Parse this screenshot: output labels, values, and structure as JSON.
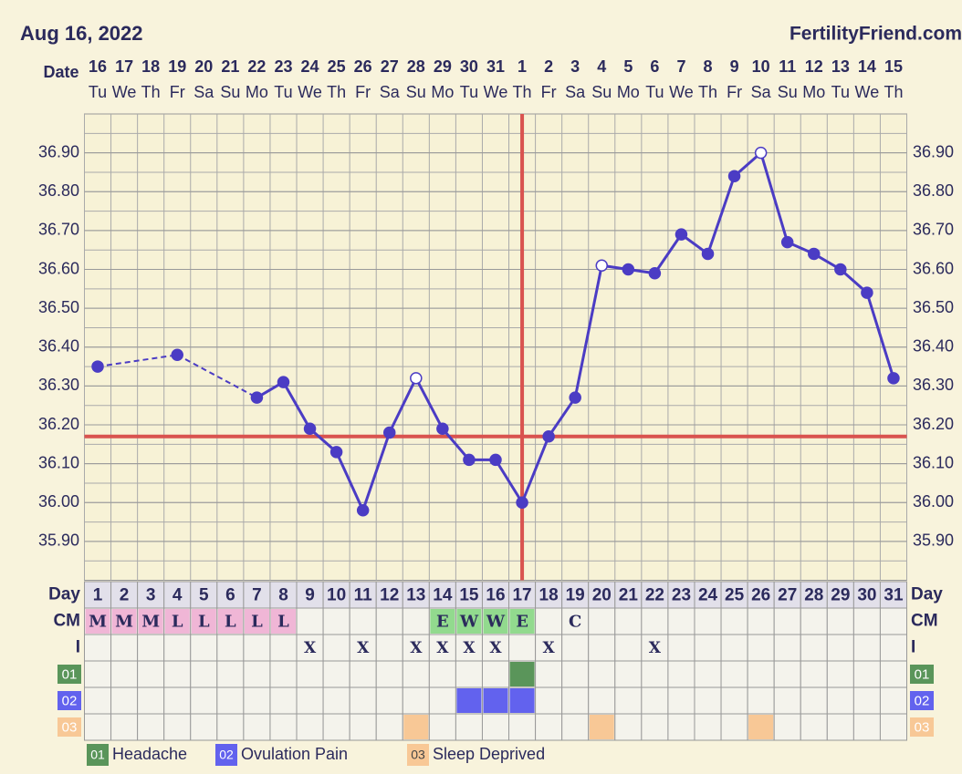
{
  "chart_data": {
    "type": "line",
    "date": "Aug 16, 2022",
    "site": "FertilityFriend.com",
    "date_label": "Date",
    "categories": [
      "16",
      "17",
      "18",
      "19",
      "20",
      "21",
      "22",
      "23",
      "24",
      "25",
      "26",
      "27",
      "28",
      "29",
      "30",
      "31",
      "1",
      "2",
      "3",
      "4",
      "5",
      "6",
      "7",
      "8",
      "9",
      "10",
      "11",
      "12",
      "13",
      "14",
      "15"
    ],
    "weekdays": [
      "Tu",
      "We",
      "Th",
      "Fr",
      "Sa",
      "Su",
      "Mo",
      "Tu",
      "We",
      "Th",
      "Fr",
      "Sa",
      "Su",
      "Mo",
      "Tu",
      "We",
      "Th",
      "Fr",
      "Sa",
      "Su",
      "Mo",
      "Tu",
      "We",
      "Th",
      "Fr",
      "Sa",
      "Su",
      "Mo",
      "Tu",
      "We",
      "Th"
    ],
    "days": [
      "1",
      "2",
      "3",
      "4",
      "5",
      "6",
      "7",
      "8",
      "9",
      "10",
      "11",
      "12",
      "13",
      "14",
      "15",
      "16",
      "17",
      "18",
      "19",
      "20",
      "21",
      "22",
      "23",
      "24",
      "25",
      "26",
      "27",
      "28",
      "29",
      "30",
      "31"
    ],
    "series": [
      {
        "color": "#4b3cc4",
        "values": [
          36.35,
          null,
          null,
          36.38,
          null,
          null,
          36.27,
          36.31,
          36.19,
          36.13,
          35.98,
          36.18,
          36.32,
          36.19,
          36.11,
          36.11,
          36.0,
          36.17,
          36.27,
          36.61,
          36.6,
          36.59,
          36.69,
          36.64,
          36.84,
          36.9,
          36.67,
          36.64,
          36.6,
          36.54,
          36.32
        ],
        "open": [
          false,
          false,
          false,
          false,
          false,
          false,
          false,
          false,
          false,
          false,
          false,
          false,
          true,
          false,
          false,
          false,
          false,
          false,
          false,
          true,
          false,
          false,
          false,
          false,
          false,
          true,
          false,
          false,
          false,
          false,
          false
        ]
      }
    ],
    "ylim": [
      35.8,
      37.0
    ],
    "yticks": [
      {
        "value": 35.9,
        "label": "35.90"
      },
      {
        "value": 36.0,
        "label": "36.00"
      },
      {
        "value": 36.1,
        "label": "36.10"
      },
      {
        "value": 36.2,
        "label": "36.20"
      },
      {
        "value": 36.3,
        "label": "36.30"
      },
      {
        "value": 36.4,
        "label": "36.40"
      },
      {
        "value": 36.5,
        "label": "36.50"
      },
      {
        "value": 36.6,
        "label": "36.60"
      },
      {
        "value": 36.7,
        "label": "36.70"
      },
      {
        "value": 36.8,
        "label": "36.80"
      },
      {
        "value": 36.9,
        "label": "36.90"
      }
    ],
    "coverline": 36.17,
    "ovulation_day": 17,
    "marker_color": "#d9534f",
    "row_labels": [
      "Day",
      "CM",
      "I"
    ],
    "cm": [
      "M",
      "M",
      "M",
      "L",
      "L",
      "L",
      "L",
      "L",
      null,
      null,
      null,
      null,
      null,
      "E",
      "W",
      "W",
      "E",
      null,
      "C",
      null,
      null,
      null,
      null,
      null,
      null,
      null,
      null,
      null,
      null,
      null,
      null
    ],
    "cm_colors": {
      "M": "#f0b6d6",
      "L": "#f0b6d6",
      "E": "#92da8e",
      "W": "#92da8e"
    },
    "intercourse": [
      null,
      null,
      null,
      null,
      null,
      null,
      null,
      null,
      "X",
      null,
      "X",
      null,
      "X",
      "X",
      "X",
      "X",
      null,
      "X",
      null,
      null,
      null,
      "X",
      null,
      null,
      null,
      null,
      null,
      null,
      null,
      null,
      null
    ],
    "symptoms": [
      {
        "code": "01",
        "name": "Headache",
        "color": "#5a955a",
        "days": [
          17
        ]
      },
      {
        "code": "02",
        "name": "Ovulation Pain",
        "color": "#6262ee",
        "days": [
          15,
          16,
          17
        ]
      },
      {
        "code": "03",
        "name": "Sleep Deprived",
        "color": "#f8c896",
        "days": [
          13,
          20,
          26
        ]
      }
    ]
  }
}
